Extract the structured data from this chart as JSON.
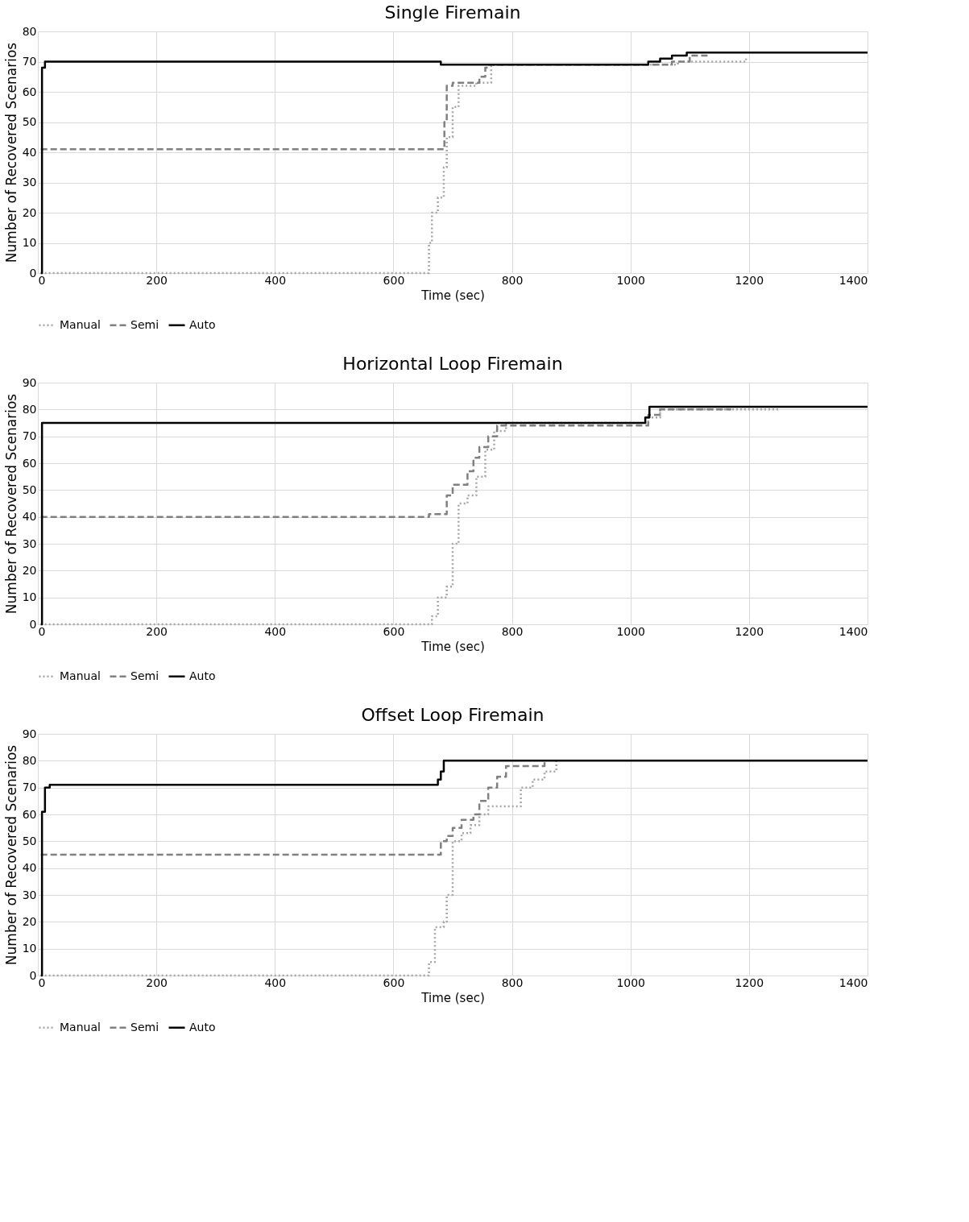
{
  "chart_data": [
    {
      "type": "step",
      "title": "Single Firemain",
      "xlabel": "Time (sec)",
      "ylabel": "Number of Recovered Scenarios",
      "xlim": [
        0,
        1400
      ],
      "xticks": [
        0,
        200,
        400,
        600,
        800,
        1000,
        1200,
        1400
      ],
      "ylim": [
        0,
        80
      ],
      "yticks": [
        0,
        10,
        20,
        30,
        40,
        50,
        60,
        70,
        80
      ],
      "grid": true,
      "legend": "bottom",
      "series": [
        {
          "name": "Manual",
          "color": "#a6a6a6",
          "line_style": "dotted",
          "x": [
            5,
            655,
            660,
            665,
            675,
            685,
            690,
            700,
            710,
            740,
            765,
            1040,
            1080,
            1190,
            1195
          ],
          "values": [
            0,
            0,
            10,
            20,
            25,
            35,
            45,
            55,
            62,
            63,
            69,
            69,
            70,
            70,
            71
          ]
        },
        {
          "name": "Semi",
          "color": "#808080",
          "line_style": "dashed",
          "x": [
            5,
            683,
            686,
            690,
            700,
            745,
            755,
            760,
            1035,
            1070,
            1100,
            1130
          ],
          "values": [
            41,
            41,
            50,
            62,
            63,
            65,
            68,
            69,
            69,
            70,
            72,
            72
          ]
        },
        {
          "name": "Auto",
          "color": "#000000",
          "line_style": "solid",
          "x": [
            5,
            7,
            12,
            680,
            1030,
            1050,
            1070,
            1095,
            1400
          ],
          "values": [
            0,
            68,
            70,
            69,
            70,
            71,
            72,
            73,
            73
          ]
        }
      ]
    },
    {
      "type": "step",
      "title": "Horizontal Loop Firemain",
      "xlabel": "Time (sec)",
      "ylabel": "Number of Recovered Scenarios",
      "xlim": [
        0,
        1400
      ],
      "xticks": [
        0,
        200,
        400,
        600,
        800,
        1000,
        1200,
        1400
      ],
      "ylim": [
        0,
        90
      ],
      "yticks": [
        0,
        10,
        20,
        30,
        40,
        50,
        60,
        70,
        80,
        90
      ],
      "grid": true,
      "legend": "bottom",
      "series": [
        {
          "name": "Manual",
          "color": "#a6a6a6",
          "line_style": "dotted",
          "x": [
            5,
            650,
            665,
            675,
            690,
            700,
            710,
            725,
            740,
            755,
            770,
            790,
            1030,
            1050,
            1250
          ],
          "values": [
            0,
            0,
            3,
            10,
            14,
            30,
            45,
            48,
            55,
            65,
            72,
            75,
            77,
            80,
            80
          ]
        },
        {
          "name": "Semi",
          "color": "#808080",
          "line_style": "dashed",
          "x": [
            5,
            640,
            660,
            685,
            690,
            700,
            715,
            725,
            735,
            745,
            760,
            775,
            1030,
            1050,
            1170
          ],
          "values": [
            40,
            40,
            41,
            41,
            48,
            52,
            52,
            57,
            62,
            66,
            70,
            74,
            78,
            80,
            80
          ]
        },
        {
          "name": "Auto",
          "color": "#000000",
          "line_style": "solid",
          "x": [
            5,
            7,
            1020,
            1025,
            1032,
            1400
          ],
          "values": [
            0,
            75,
            75,
            77,
            81,
            81
          ]
        }
      ]
    },
    {
      "type": "step",
      "title": "Offset Loop Firemain",
      "xlabel": "Time (sec)",
      "ylabel": "Number of Recovered Scenarios",
      "xlim": [
        0,
        1400
      ],
      "xticks": [
        0,
        200,
        400,
        600,
        800,
        1000,
        1200,
        1400
      ],
      "ylim": [
        0,
        90
      ],
      "yticks": [
        0,
        10,
        20,
        30,
        40,
        50,
        60,
        70,
        80,
        90
      ],
      "grid": true,
      "legend": "bottom",
      "series": [
        {
          "name": "Manual",
          "color": "#a6a6a6",
          "line_style": "dotted",
          "x": [
            5,
            650,
            660,
            670,
            685,
            690,
            700,
            715,
            730,
            745,
            760,
            800,
            815,
            835,
            855,
            875
          ],
          "values": [
            0,
            0,
            5,
            18,
            20,
            30,
            50,
            53,
            56,
            60,
            63,
            63,
            70,
            73,
            76,
            80
          ]
        },
        {
          "name": "Semi",
          "color": "#808080",
          "line_style": "dashed",
          "x": [
            5,
            675,
            680,
            690,
            700,
            715,
            735,
            745,
            760,
            775,
            790,
            855
          ],
          "values": [
            45,
            45,
            50,
            52,
            55,
            58,
            60,
            65,
            70,
            74,
            78,
            80
          ]
        },
        {
          "name": "Auto",
          "color": "#000000",
          "line_style": "solid",
          "x": [
            5,
            7,
            12,
            20,
            670,
            675,
            680,
            685,
            1400
          ],
          "values": [
            0,
            61,
            70,
            71,
            71,
            73,
            76,
            80,
            80
          ]
        }
      ]
    }
  ]
}
